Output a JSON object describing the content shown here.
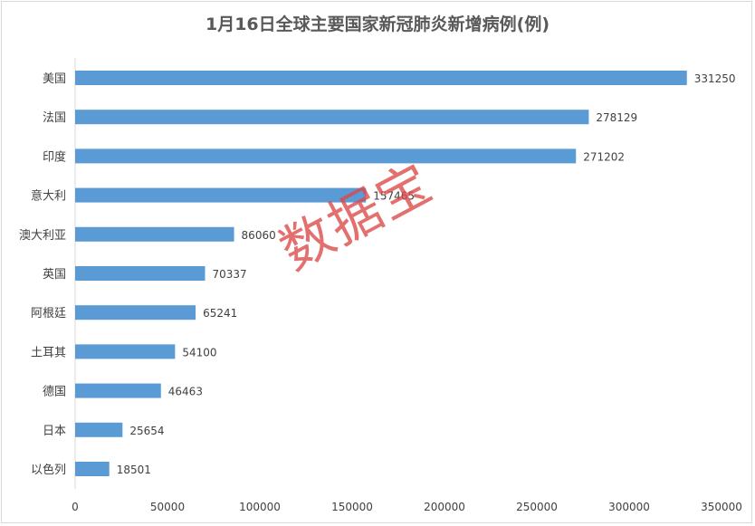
{
  "chart_data": {
    "type": "bar",
    "orientation": "horizontal",
    "title": "1月16日全球主要国家新冠肺炎新增病例(例)",
    "categories": [
      "美国",
      "法国",
      "印度",
      "意大利",
      "澳大利亚",
      "英国",
      "阿根廷",
      "土耳其",
      "德国",
      "日本",
      "以色列"
    ],
    "values": [
      331250,
      278129,
      271202,
      157465,
      86060,
      70337,
      65241,
      54100,
      46463,
      25654,
      18501
    ],
    "xlim": [
      0,
      350000
    ],
    "xticks": [
      0,
      50000,
      100000,
      150000,
      200000,
      250000,
      300000,
      350000
    ],
    "grid": false,
    "legend": "none",
    "bar_color": "#5b9bd5"
  },
  "watermark": "数据宝"
}
